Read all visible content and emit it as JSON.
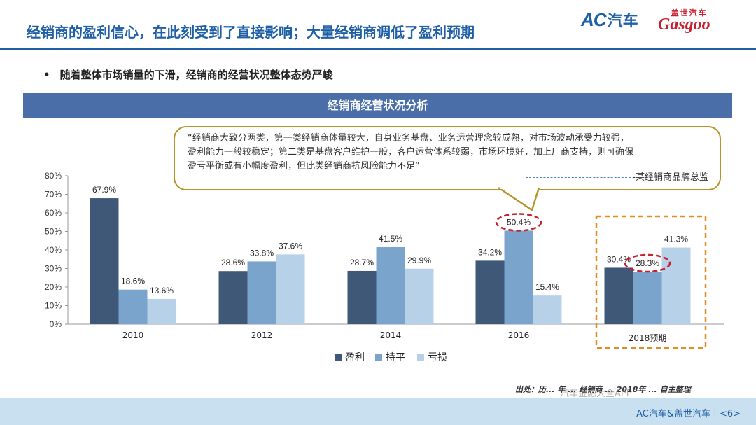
{
  "header": {
    "title": "经销商的盈利信心，在此刻受到了直接影响；大量经销商调低了盈利预期",
    "logo_ac": "AC",
    "logo_ac_cn": "汽车",
    "logo_gasgoo_cn": "盖世汽车",
    "logo_gasgoo_en": "Gasgoo"
  },
  "bullet": {
    "symbol": "•",
    "text": "随着整体市场销量的下滑，经销商的经营状况整体态势严峻"
  },
  "banner": {
    "text": "经销商经营状况分析"
  },
  "quote": {
    "lines": [
      "“经销商大致分两类，第一类经销商体量较大，自身业务基盘、业务运营理念较成熟，对市场波动承受力较强，",
      "盈利能力一般较稳定；第二类是基盘客户维护一般，客户运营体系较弱，市场环境好，加上厂商支持，则可确保",
      "盈亏平衡或有小幅度盈利，但此类经销商抗风险能力不足”"
    ],
    "source": "-某经销商品牌总监"
  },
  "chart_data": {
    "type": "bar",
    "categories": [
      "2010",
      "2012",
      "2014",
      "2016",
      "2018预期"
    ],
    "series": [
      {
        "name": "盈利",
        "values": [
          67.9,
          28.6,
          28.7,
          34.2,
          30.4
        ],
        "labels": [
          "67.9%",
          "28.6%",
          "28.7%",
          "34.2%",
          "30.4%"
        ]
      },
      {
        "name": "持平",
        "values": [
          18.6,
          33.8,
          41.5,
          50.4,
          28.3
        ],
        "labels": [
          "18.6%",
          "33.8%",
          "41.5%",
          "50.4%",
          "28.3%"
        ]
      },
      {
        "name": "亏损",
        "values": [
          13.6,
          37.6,
          29.9,
          15.4,
          41.3
        ],
        "labels": [
          "13.6%",
          "37.6%",
          "29.9%",
          "15.4%",
          "41.3%"
        ]
      }
    ],
    "colors": [
      "#3f5877",
      "#7aa4cc",
      "#b7d2e8"
    ],
    "ylim": [
      0,
      80
    ],
    "yticks": [
      "0%",
      "10%",
      "20%",
      "30%",
      "40%",
      "50%",
      "60%",
      "70%",
      "80%"
    ],
    "grid": false,
    "legend": "bottom-center",
    "highlight_color": "#c8202f",
    "forecast_box_color": "#e08a2a"
  },
  "footer": {
    "source_note": "出处：历... 年 ... 经销商 ... 2018年 ... 自主整理",
    "page": "AC汽车&盖世汽车丨<6>",
    "watermark": "汽车金融大全APP"
  }
}
